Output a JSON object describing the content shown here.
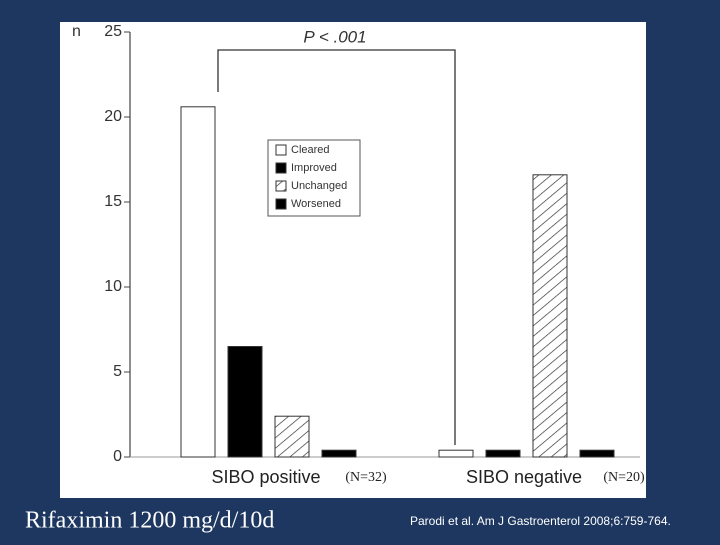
{
  "chart_data": {
    "type": "bar",
    "annotation": "P < .001",
    "y_label": "n",
    "categories": [
      "SIBO positive",
      "SIBO negative"
    ],
    "category_notes": [
      "(N=32)",
      "(N=20)"
    ],
    "series": [
      {
        "name": "Cleared",
        "color": "#ffffff",
        "values": [
          20.6,
          0.4
        ]
      },
      {
        "name": "Improved",
        "color": "#000000",
        "values": [
          6.5,
          0.4
        ]
      },
      {
        "name": "Unchanged",
        "color": "#ffffff",
        "pattern": "hatch",
        "values": [
          2.4,
          16.6
        ]
      },
      {
        "name": "Worsened",
        "color": "#000000",
        "values": [
          0.4,
          0.4
        ]
      }
    ],
    "ylim": [
      0,
      25
    ],
    "yticks": [
      0,
      5,
      10,
      15,
      20,
      25
    ],
    "legend": "upper-left"
  },
  "slide": {
    "caption": "Rifaximin 1200 mg/d/10d",
    "citation": "Parodi et al. Am J Gastroenterol 2008;6:759-764."
  }
}
